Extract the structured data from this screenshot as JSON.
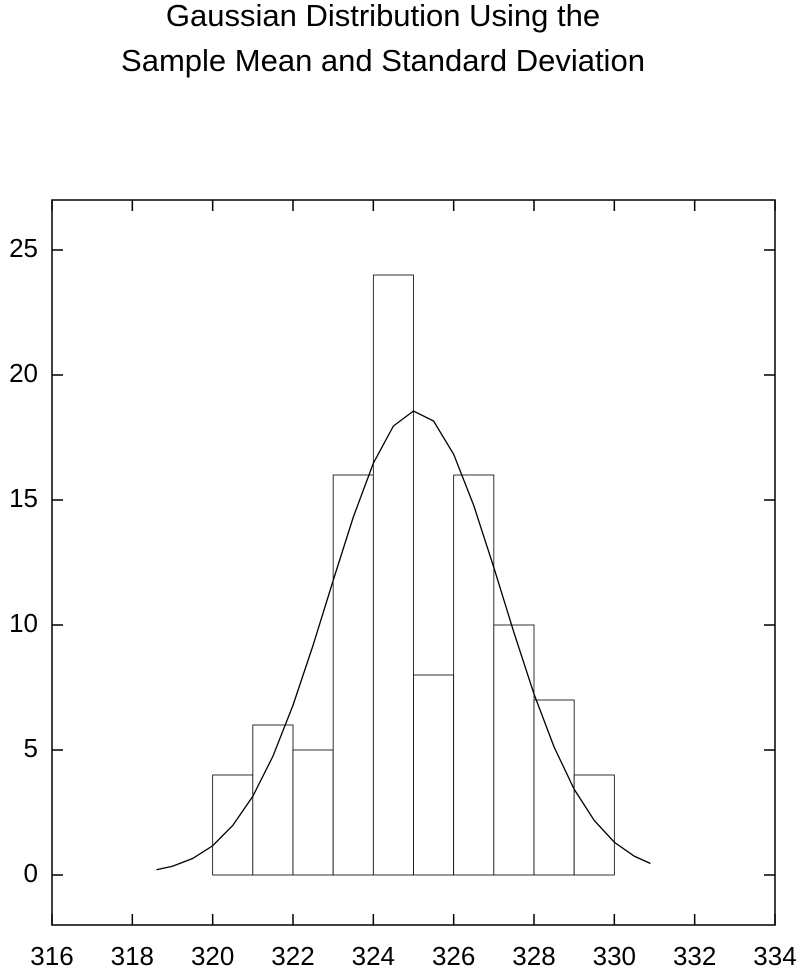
{
  "chart_data": {
    "type": "histogram",
    "title": [
      "Gaussian Distribution Using the",
      "Sample Mean and Standard Deviation"
    ],
    "bins": [
      320,
      321,
      322,
      323,
      324,
      325,
      326,
      327,
      328,
      329,
      330
    ],
    "counts": [
      4,
      6,
      5,
      16,
      24,
      8,
      16,
      10,
      7,
      4
    ],
    "color": "#ffffff",
    "curve": {
      "color": "#000000",
      "x": [
        318.6,
        319,
        319.5,
        320,
        320.5,
        321,
        321.5,
        322,
        322.5,
        323,
        323.5,
        324,
        324.5,
        325,
        325.5,
        326,
        326.5,
        327,
        327.5,
        328,
        328.5,
        329,
        329.5,
        330,
        330.5,
        330.9
      ],
      "y": [
        0.21,
        0.35,
        0.66,
        1.17,
        1.98,
        3.15,
        4.75,
        6.79,
        9.19,
        11.78,
        14.31,
        16.47,
        17.96,
        18.56,
        18.16,
        16.83,
        14.78,
        12.3,
        9.7,
        7.24,
        5.12,
        3.43,
        2.18,
        1.31,
        0.75,
        0.46
      ]
    },
    "xlim": [
      316,
      334
    ],
    "xticks": [
      316,
      318,
      320,
      322,
      324,
      326,
      328,
      330,
      332,
      334
    ],
    "ylim": [
      -2,
      27
    ],
    "yticks": [
      0,
      5,
      10,
      15,
      20,
      25
    ]
  }
}
